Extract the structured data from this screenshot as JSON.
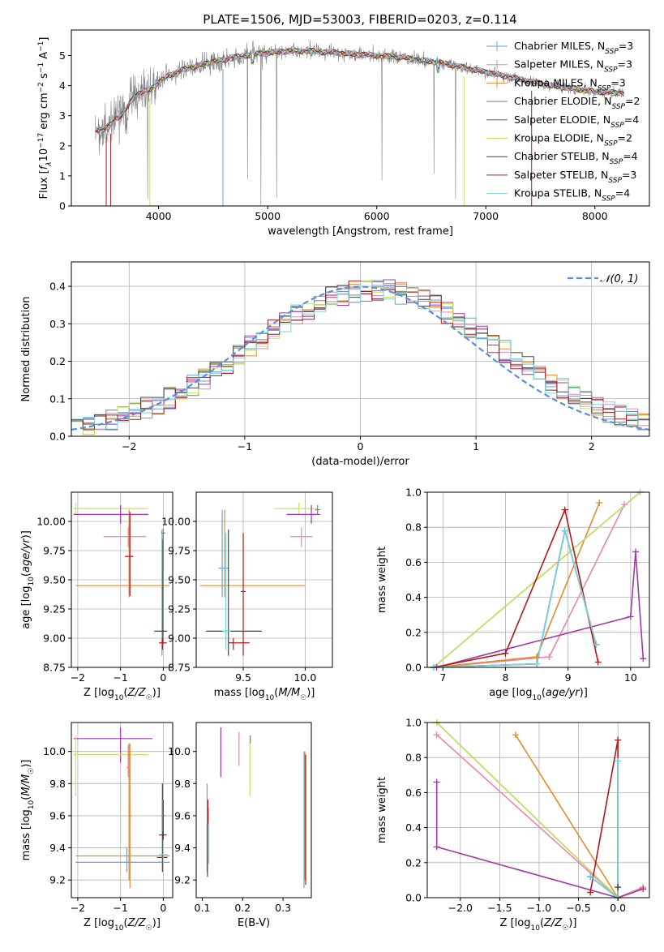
{
  "figure_title": "PLATE=1506, MJD=53003, FIBERID=0203, z=0.114",
  "colors": {
    "chabrier_miles": "#6d9edb",
    "salpeter_miles": "#e985b3",
    "kroupa_miles": "#e58a2e",
    "chabrier_elodie": "#7f7f7f",
    "salpeter_elodie": "#9f38a8",
    "kroupa_elodie": "#c9e35f",
    "chabrier_stelib": "#444444",
    "salpeter_stelib": "#b01818",
    "kroupa_stelib": "#75d6df",
    "data": "#808080",
    "normal": "#5b8ee0",
    "grid": "#b0b0b0"
  },
  "chart_data": [
    {
      "id": "spectrum",
      "type": "line",
      "title": "PLATE=1506, MJD=53003, FIBERID=0203, z=0.114",
      "xlabel": "wavelength [Angstrom, rest frame]",
      "ylabel": "Flux [fλ10⁻¹⁷ erg cm⁻² s⁻¹ A⁻¹]",
      "xlim": [
        3200,
        8500
      ],
      "ylim": [
        0,
        5.85
      ],
      "xticks": [
        4000,
        5000,
        6000,
        7000,
        8000
      ],
      "yticks": [
        0,
        1,
        2,
        3,
        4,
        5
      ],
      "grid": false,
      "legend_position": "right",
      "continuum": {
        "x": [
          3420,
          3500,
          3550,
          3600,
          3650,
          3700,
          3750,
          3800,
          3850,
          3900,
          3950,
          4000,
          4100,
          4200,
          4300,
          4400,
          4500,
          4600,
          4700,
          4800,
          4900,
          5000,
          5200,
          5400,
          5600,
          5800,
          6000,
          6200,
          6400,
          6600,
          6800,
          7000,
          7200,
          7400,
          7600,
          7800,
          8000,
          8270
        ],
        "y": [
          2.55,
          2.55,
          2.65,
          2.9,
          3.0,
          3.2,
          3.5,
          3.7,
          3.8,
          3.85,
          3.95,
          4.1,
          4.35,
          4.5,
          4.6,
          4.7,
          4.8,
          4.85,
          4.95,
          5.0,
          5.05,
          5.1,
          5.15,
          5.15,
          5.1,
          5.05,
          5.0,
          4.95,
          4.85,
          4.75,
          4.6,
          4.45,
          4.3,
          4.15,
          4.0,
          3.9,
          3.8,
          3.75
        ]
      },
      "series": [
        {
          "name": "Chabrier MILES, N_SSP=3",
          "color": "#6d9edb"
        },
        {
          "name": "Salpeter MILES, N_SSP=3",
          "color": "#e985b3"
        },
        {
          "name": "Kroupa MILES, N_SSP=3",
          "color": "#e58a2e"
        },
        {
          "name": "Chabrier ELODIE, N_SSP=2",
          "color": "#7f7f7f"
        },
        {
          "name": "Salpeter ELODIE, N_SSP=4",
          "color": "#9f38a8"
        },
        {
          "name": "Kroupa ELODIE, N_SSP=2",
          "color": "#c9e35f"
        },
        {
          "name": "Chabrier STELIB, N_SSP=4",
          "color": "#444444"
        },
        {
          "name": "Salpeter STELIB, N_SSP=3",
          "color": "#b01818"
        },
        {
          "name": "Kroupa STELIB, N_SSP=4",
          "color": "#75d6df"
        }
      ],
      "legend_labels": [
        {
          "pre": "Chabrier MILES, N",
          "sub": "SSP",
          "post": "=3"
        },
        {
          "pre": "Salpeter MILES, N",
          "sub": "SSP",
          "post": "=3"
        },
        {
          "pre": "Kroupa MILES, N",
          "sub": "SSP",
          "post": "=3"
        },
        {
          "pre": "Chabrier ELODIE, N",
          "sub": "SSP",
          "post": "=2"
        },
        {
          "pre": "Salpeter ELODIE, N",
          "sub": "SSP",
          "post": "=4"
        },
        {
          "pre": "Kroupa ELODIE, N",
          "sub": "SSP",
          "post": "=2"
        },
        {
          "pre": "Chabrier STELIB, N",
          "sub": "SSP",
          "post": "=4"
        },
        {
          "pre": "Salpeter STELIB, N",
          "sub": "SSP",
          "post": "=3"
        },
        {
          "pre": "Kroupa STELIB, N",
          "sub": "SSP",
          "post": "=4"
        }
      ]
    },
    {
      "id": "residuals",
      "type": "line",
      "xlabel": "(data-model)/error",
      "ylabel": "Normed distribution",
      "xlim": [
        -2.5,
        2.5
      ],
      "ylim": [
        0,
        0.465
      ],
      "xticks": [
        -2,
        -1,
        0,
        1,
        2
      ],
      "yticks": [
        0.0,
        0.1,
        0.2,
        0.3,
        0.4
      ],
      "grid": true,
      "legend": "𝒩(0, 1)",
      "legend_position": "top-right",
      "bin_width": 0.1,
      "normal": {
        "mean": 0,
        "sigma": 1
      }
    },
    {
      "id": "age-vs-Z",
      "type": "scatter",
      "xlabel": "Z [log₁₀(Z/Z☉)]",
      "ylabel": "age  [log₁₀(age/yr)]",
      "xlim": [
        -2.15,
        0.22
      ],
      "ylim": [
        8.75,
        10.25
      ],
      "xticks": [
        -2,
        -1,
        0
      ],
      "yticks": [
        8.75,
        9.0,
        9.25,
        9.5,
        9.75,
        10.0
      ],
      "ytick_labels": [
        "8.75",
        "9.00",
        "9.25",
        "9.50",
        "9.75",
        "10.00"
      ],
      "grid": true,
      "points": [
        {
          "x": -2.05,
          "y": 10.11,
          "xlo": -2.1,
          "xhi": -0.35,
          "ylo": 10.06,
          "yhi": 10.16,
          "color": "#c9e35f"
        },
        {
          "x": -1.0,
          "y": 10.06,
          "xlo": -2.1,
          "xhi": -0.35,
          "ylo": 9.98,
          "yhi": 10.14,
          "color": "#9f38a8"
        },
        {
          "x": -0.82,
          "y": 9.87,
          "xlo": -1.4,
          "xhi": -0.4,
          "ylo": 9.78,
          "yhi": 9.95,
          "color": "#e985b3"
        },
        {
          "x": -0.8,
          "y": 9.45,
          "xlo": -2.05,
          "xhi": 0.15,
          "ylo": 9.35,
          "yhi": 10.1,
          "color": "#e58a2e"
        },
        {
          "x": -0.78,
          "y": 9.7,
          "xlo": -0.9,
          "xhi": -0.7,
          "ylo": 9.36,
          "yhi": 10.08,
          "color": "#b01818"
        },
        {
          "x": -0.03,
          "y": 9.06,
          "xlo": -0.22,
          "xhi": 0.1,
          "ylo": 8.85,
          "yhi": 9.93,
          "color": "#6d9edb"
        },
        {
          "x": -0.02,
          "y": 9.06,
          "xlo": -0.2,
          "xhi": 0.1,
          "ylo": 8.9,
          "yhi": 9.9,
          "color": "#75d6df"
        },
        {
          "x": -0.01,
          "y": 9.06,
          "xlo": -0.2,
          "xhi": 0.08,
          "ylo": 8.95,
          "yhi": 9.85,
          "color": "#444444"
        },
        {
          "x": -0.02,
          "y": 8.96,
          "xlo": -0.1,
          "xhi": 0.08,
          "ylo": 8.9,
          "yhi": 9.0,
          "color": "#b01818"
        },
        {
          "x": 0.0,
          "y": 9.9,
          "xlo": -0.05,
          "xhi": 0.05,
          "ylo": 9.55,
          "yhi": 9.94,
          "color": "#7f7f7f"
        }
      ]
    },
    {
      "id": "age-vs-mass",
      "type": "scatter",
      "xlabel": "mass [log₁₀(M/M☉)]",
      "ylabel": "",
      "xlim": [
        9.12,
        10.22
      ],
      "ylim": [
        8.75,
        10.25
      ],
      "xticks": [
        9.5,
        10.0
      ],
      "yticks": [
        8.75,
        9.0,
        9.25,
        9.5,
        9.75,
        10.0
      ],
      "ytick_labels": [
        "8.75",
        "9.00",
        "9.25",
        "9.50",
        "9.75",
        "10.00"
      ],
      "grid": true,
      "points": [
        {
          "x": 9.95,
          "y": 10.11,
          "xlo": 9.75,
          "xhi": 10.1,
          "ylo": 10.06,
          "yhi": 10.16,
          "color": "#c9e35f"
        },
        {
          "x": 10.05,
          "y": 10.06,
          "xlo": 9.85,
          "xhi": 10.12,
          "ylo": 9.98,
          "yhi": 10.14,
          "color": "#9f38a8"
        },
        {
          "x": 9.97,
          "y": 9.87,
          "xlo": 9.88,
          "xhi": 10.06,
          "ylo": 9.78,
          "yhi": 9.95,
          "color": "#e985b3"
        },
        {
          "x": 9.35,
          "y": 9.45,
          "xlo": 9.15,
          "xhi": 10.0,
          "ylo": 9.35,
          "yhi": 10.1,
          "color": "#e58a2e"
        },
        {
          "x": 9.33,
          "y": 9.6,
          "xlo": 9.3,
          "xhi": 9.38,
          "ylo": 9.35,
          "yhi": 10.1,
          "color": "#6d9edb"
        },
        {
          "x": 9.38,
          "y": 9.06,
          "xlo": 9.2,
          "xhi": 9.65,
          "ylo": 8.85,
          "yhi": 9.93,
          "color": "#444444"
        },
        {
          "x": 9.36,
          "y": 9.06,
          "xlo": 9.33,
          "xhi": 9.4,
          "ylo": 8.9,
          "yhi": 9.9,
          "color": "#75d6df"
        },
        {
          "x": 9.42,
          "y": 8.96,
          "xlo": 9.38,
          "xhi": 9.55,
          "ylo": 8.9,
          "yhi": 9.0,
          "color": "#b01818"
        },
        {
          "x": 9.5,
          "y": 9.4,
          "xlo": 9.48,
          "xhi": 9.52,
          "ylo": 8.85,
          "yhi": 9.9,
          "color": "#b01818"
        },
        {
          "x": 10.1,
          "y": 10.1,
          "xlo": 10.08,
          "xhi": 10.12,
          "ylo": 10.06,
          "yhi": 10.14,
          "color": "#7f7f7f"
        }
      ]
    },
    {
      "id": "mass-weight-vs-age",
      "type": "line",
      "xlabel": "age  [log₁₀(age/yr)]",
      "ylabel": "mass weight",
      "xlim": [
        6.75,
        10.3
      ],
      "ylim": [
        0,
        1.0
      ],
      "xticks": [
        7,
        8,
        9,
        10
      ],
      "yticks": [
        0.0,
        0.2,
        0.4,
        0.6,
        0.8,
        1.0
      ],
      "grid": true,
      "series": [
        {
          "name": "Chabrier MILES",
          "color": "#6d9edb",
          "x": [
            6.85,
            8.5,
            8.95,
            9.45
          ],
          "y": [
            0.0,
            0.02,
            0.78,
            0.13
          ]
        },
        {
          "name": "Salpeter MILES",
          "color": "#e985b3",
          "x": [
            6.9,
            8.7,
            9.9
          ],
          "y": [
            0.0,
            0.06,
            0.93
          ]
        },
        {
          "name": "Kroupa MILES",
          "color": "#e58a2e",
          "x": [
            6.85,
            8.5,
            9.5
          ],
          "y": [
            0.0,
            0.06,
            0.94
          ]
        },
        {
          "name": "Chabrier ELODIE",
          "color": "#7f7f7f",
          "x": [
            6.85,
            10.15
          ],
          "y": [
            0.0,
            1.0
          ]
        },
        {
          "name": "Salpeter ELODIE",
          "color": "#9f38a8",
          "x": [
            6.9,
            10.0,
            10.08,
            10.2
          ],
          "y": [
            0.0,
            0.29,
            0.66,
            0.05
          ]
        },
        {
          "name": "Kroupa ELODIE",
          "color": "#c9e35f",
          "x": [
            6.85,
            10.15
          ],
          "y": [
            0.0,
            1.0
          ]
        },
        {
          "name": "Chabrier STELIB",
          "color": "#444444",
          "x": [
            6.85,
            8.5,
            8.95,
            9.45
          ],
          "y": [
            0.0,
            0.02,
            0.78,
            0.13
          ]
        },
        {
          "name": "Salpeter STELIB",
          "color": "#b01818",
          "x": [
            6.85,
            8.0,
            8.95,
            9.48
          ],
          "y": [
            0.0,
            0.08,
            0.9,
            0.03
          ]
        },
        {
          "name": "Kroupa STELIB",
          "color": "#75d6df",
          "x": [
            6.85,
            8.5,
            8.95,
            9.45
          ],
          "y": [
            0.0,
            0.02,
            0.78,
            0.13
          ]
        }
      ]
    },
    {
      "id": "mass-vs-Z",
      "type": "scatter",
      "xlabel": "Z [log₁₀(Z/Z☉)]",
      "ylabel": "mass [log₁₀(M/M☉)]",
      "xlim": [
        -2.15,
        0.22
      ],
      "ylim": [
        9.09,
        10.18
      ],
      "xticks": [
        -2,
        -1,
        0
      ],
      "yticks": [
        9.2,
        9.4,
        9.6,
        9.8,
        10.0
      ],
      "ytick_labels": [
        "9.2",
        "9.4",
        "9.6",
        "9.8",
        "10.0"
      ],
      "grid": true,
      "points": [
        {
          "x": -1.0,
          "y": 10.08,
          "xlo": -2.1,
          "xhi": -0.25,
          "ylo": 9.93,
          "yhi": 10.15,
          "color": "#9f38a8"
        },
        {
          "x": -2.05,
          "y": 9.98,
          "xlo": -2.1,
          "xhi": -0.35,
          "ylo": 9.72,
          "yhi": 10.1,
          "color": "#c9e35f"
        },
        {
          "x": -0.78,
          "y": 9.6,
          "xlo": -0.82,
          "xhi": -0.74,
          "ylo": 9.15,
          "yhi": 10.05,
          "color": "#e58a2e"
        },
        {
          "x": -0.82,
          "y": 9.9,
          "xlo": -0.86,
          "xhi": -0.78,
          "ylo": 9.84,
          "yhi": 10.04,
          "color": "#e985b3"
        },
        {
          "x": -0.8,
          "y": 9.35,
          "xlo": -2.05,
          "xhi": 0.15,
          "ylo": 9.2,
          "yhi": 10.05,
          "color": "#e58a2e"
        },
        {
          "x": -0.85,
          "y": 9.31,
          "xlo": -2.05,
          "xhi": 0.15,
          "ylo": 9.25,
          "yhi": 9.4,
          "color": "#6d9edb"
        },
        {
          "x": 0.0,
          "y": 9.48,
          "xlo": -0.1,
          "xhi": 0.08,
          "ylo": 9.4,
          "yhi": 9.7,
          "color": "#b01818"
        },
        {
          "x": -0.02,
          "y": 9.34,
          "xlo": -0.15,
          "xhi": 0.1,
          "ylo": 9.25,
          "yhi": 9.8,
          "color": "#444444"
        },
        {
          "x": 0.0,
          "y": 9.36,
          "xlo": -0.1,
          "xhi": 0.1,
          "ylo": 9.3,
          "yhi": 9.45,
          "color": "#75d6df"
        },
        {
          "x": -0.02,
          "y": 9.6,
          "xlo": -0.05,
          "xhi": 0.05,
          "ylo": 9.5,
          "yhi": 9.7,
          "color": "#7f7f7f"
        }
      ]
    },
    {
      "id": "mass-vs-ebv",
      "type": "scatter",
      "xlabel": "E(B-V)",
      "ylabel": "",
      "xlim": [
        0.085,
        0.37
      ],
      "ylim": [
        9.09,
        10.18
      ],
      "xticks": [
        0.1,
        0.2,
        0.3
      ],
      "yticks": [
        9.2,
        9.4,
        9.6,
        9.8,
        10.0
      ],
      "ytick_labels": [
        "9.2",
        "9.4",
        "9.6",
        "9.8",
        "10.0"
      ],
      "grid": false,
      "vlines": [
        {
          "x": 0.112,
          "ylo": 9.25,
          "yhi": 9.8,
          "color": "#6d9edb"
        },
        {
          "x": 0.113,
          "ylo": 9.22,
          "yhi": 9.55,
          "color": "#444444"
        },
        {
          "x": 0.116,
          "ylo": 9.3,
          "yhi": 9.65,
          "color": "#75d6df"
        },
        {
          "x": 0.114,
          "ylo": 9.55,
          "yhi": 9.7,
          "color": "#b01818"
        },
        {
          "x": 0.146,
          "ylo": 9.84,
          "yhi": 10.15,
          "color": "#9f38a8"
        },
        {
          "x": 0.191,
          "ylo": 9.91,
          "yhi": 10.12,
          "color": "#e985b3"
        },
        {
          "x": 0.218,
          "ylo": 9.72,
          "yhi": 10.1,
          "color": "#c9e35f"
        },
        {
          "x": 0.219,
          "ylo": 10.05,
          "yhi": 10.1,
          "color": "#7f7f7f"
        },
        {
          "x": 0.352,
          "ylo": 9.15,
          "yhi": 10.0,
          "color": "#6d9edb"
        },
        {
          "x": 0.354,
          "ylo": 9.2,
          "yhi": 10.0,
          "color": "#e58a2e"
        },
        {
          "x": 0.356,
          "ylo": 9.17,
          "yhi": 9.98,
          "color": "#b01818"
        }
      ]
    },
    {
      "id": "mass-weight-vs-Z",
      "type": "line",
      "xlabel": "Z [log₁₀(Z/Z☉)]",
      "ylabel": "mass weight",
      "xlim": [
        -2.42,
        0.4
      ],
      "ylim": [
        0,
        1.0
      ],
      "xticks": [
        -2.0,
        -1.5,
        -1.0,
        -0.5,
        0.0
      ],
      "grid": true,
      "yticks": [
        0.0,
        0.2,
        0.4,
        0.6,
        0.8,
        1.0
      ],
      "series": [
        {
          "name": "Chabrier MILES",
          "color": "#6d9edb",
          "x": [
            -0.35,
            0.0,
            0.0
          ],
          "y": [
            0.12,
            0.0,
            0.78
          ]
        },
        {
          "name": "Salpeter MILES",
          "color": "#e985b3",
          "x": [
            -2.3,
            0.0,
            0.32
          ],
          "y": [
            0.93,
            0.0,
            0.06
          ]
        },
        {
          "name": "Kroupa MILES",
          "color": "#e58a2e",
          "x": [
            -1.3,
            0.0,
            0.32
          ],
          "y": [
            0.93,
            0.0,
            0.05
          ]
        },
        {
          "name": "Chabrier ELODIE",
          "color": "#7f7f7f",
          "x": [
            -2.3,
            0.0
          ],
          "y": [
            1.0,
            0.0
          ]
        },
        {
          "name": "Salpeter ELODIE",
          "color": "#9f38a8",
          "x": [
            -2.3,
            -2.3,
            0.0,
            0.32
          ],
          "y": [
            0.66,
            0.29,
            0.0,
            0.05
          ]
        },
        {
          "name": "Kroupa ELODIE",
          "color": "#c9e35f",
          "x": [
            -2.3,
            0.0
          ],
          "y": [
            1.0,
            0.0
          ]
        },
        {
          "name": "Chabrier STELIB",
          "color": "#444444",
          "x": [
            -0.35,
            0.0,
            0.0
          ],
          "y": [
            0.12,
            0.0,
            0.06
          ]
        },
        {
          "name": "Salpeter STELIB",
          "color": "#b01818",
          "x": [
            -0.35,
            0.0,
            0.0
          ],
          "y": [
            0.03,
            0.9,
            0.0
          ]
        },
        {
          "name": "Kroupa STELIB",
          "color": "#75d6df",
          "x": [
            -0.35,
            0.0,
            0.0
          ],
          "y": [
            0.12,
            0.0,
            0.78
          ]
        }
      ]
    }
  ]
}
